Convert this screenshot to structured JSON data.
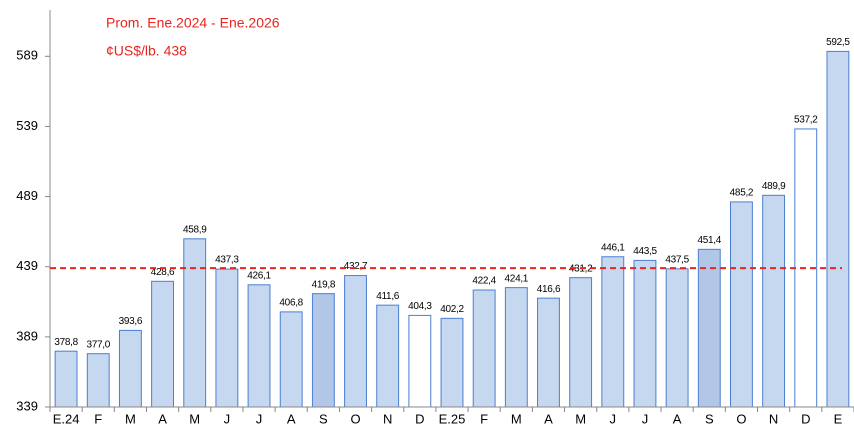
{
  "chart_data": {
    "type": "bar",
    "annotations": [
      "Prom. Ene.2024 - Ene.2026",
      "¢US$/lb. 438"
    ],
    "categories": [
      "E.24",
      "F",
      "M",
      "A",
      "M",
      "J",
      "J",
      "A",
      "S",
      "O",
      "N",
      "D",
      "E.25",
      "F",
      "M",
      "A",
      "M",
      "J",
      "J",
      "A",
      "S",
      "O",
      "N",
      "D",
      "E"
    ],
    "values": [
      378.8,
      377.0,
      393.6,
      428.6,
      458.9,
      437.3,
      426.1,
      406.8,
      419.8,
      432.7,
      411.6,
      404.3,
      402.2,
      422.4,
      424.1,
      416.6,
      431.2,
      446.1,
      443.5,
      437.5,
      451.4,
      485.2,
      489.9,
      537.2,
      592.5
    ],
    "value_labels": [
      "378,8",
      "377,0",
      "393,6",
      "428,6",
      "458,9",
      "437,3",
      "426,1",
      "406,8",
      "419,8",
      "432,7",
      "411,6",
      "404,3",
      "402,2",
      "422,4",
      "424,1",
      "416,6",
      "431,2",
      "446,1",
      "443,5",
      "437,5",
      "451,4",
      "485,2",
      "489,9",
      "537,2",
      "592,5"
    ],
    "colors": [
      "#c6d7f0",
      "#c6d7f0",
      "#c6d7f0",
      "#c6d7f0",
      "#c6d7f0",
      "#c6d7f0",
      "#c6d7f0",
      "#c6d7f0",
      "#b2c6e8",
      "#c6d7f0",
      "#c6d7f0",
      "#ffffff",
      "#c6d7f0",
      "#c6d7f0",
      "#c6d7f0",
      "#c6d7f0",
      "#c6d7f0",
      "#c6d7f0",
      "#c6d7f0",
      "#c6d7f0",
      "#b2c6e8",
      "#c6d7f0",
      "#c6d7f0",
      "#ffffff",
      "#c6d7f0"
    ],
    "border_color": "#4a7fd0",
    "reference_line": {
      "value": 438,
      "color": "#e8251f"
    },
    "ylim": [
      339,
      622
    ],
    "yticks": [
      339,
      389,
      439,
      489,
      539,
      589
    ]
  }
}
